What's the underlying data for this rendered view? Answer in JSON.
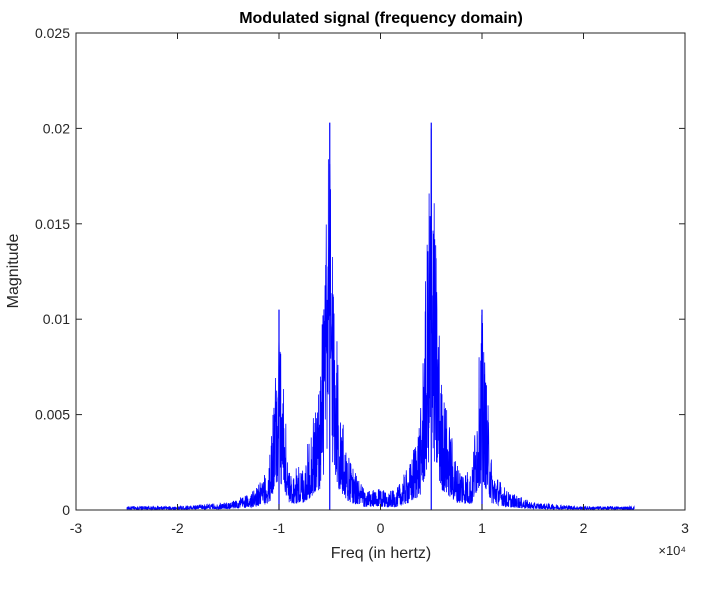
{
  "chart_data": {
    "type": "line",
    "title": "Modulated signal (frequency domain)",
    "xlabel": "Freq (in hertz)",
    "ylabel": "Magnitude",
    "x_exponent_label": "×10⁴",
    "xlim": [
      -3,
      3
    ],
    "ylim": [
      0,
      0.025
    ],
    "x_ticks": [
      "-3",
      "-2",
      "-1",
      "0",
      "1",
      "2",
      "3"
    ],
    "y_ticks": [
      "0",
      "0.005",
      "0.01",
      "0.015",
      "0.02",
      "0.025"
    ],
    "x_tick_values": [
      -3,
      -2,
      -1,
      0,
      1,
      2,
      3
    ],
    "y_tick_values": [
      0,
      0.005,
      0.01,
      0.015,
      0.02,
      0.025
    ],
    "grid": false,
    "line_color": "#0000FF",
    "series": [
      {
        "x_range": [
          -2.5,
          2.5
        ],
        "peaks": [
          {
            "x": -1.0,
            "y": 0.0105
          },
          {
            "x": -0.5,
            "y": 0.0203
          },
          {
            "x": 0.5,
            "y": 0.0203
          },
          {
            "x": 1.0,
            "y": 0.0105
          }
        ],
        "envelope": [
          {
            "x": -2.5,
            "y": 0.0002
          },
          {
            "x": -2.0,
            "y": 0.0002
          },
          {
            "x": -1.5,
            "y": 0.0004
          },
          {
            "x": -1.25,
            "y": 0.001
          },
          {
            "x": -1.1,
            "y": 0.0022
          },
          {
            "x": -1.0,
            "y": 0.0105
          },
          {
            "x": -0.9,
            "y": 0.002
          },
          {
            "x": -0.75,
            "y": 0.0025
          },
          {
            "x": -0.6,
            "y": 0.007
          },
          {
            "x": -0.5,
            "y": 0.0203
          },
          {
            "x": -0.4,
            "y": 0.0055
          },
          {
            "x": -0.3,
            "y": 0.0026
          },
          {
            "x": -0.15,
            "y": 0.001
          },
          {
            "x": 0.0,
            "y": 0.0011
          },
          {
            "x": 0.15,
            "y": 0.001
          },
          {
            "x": 0.3,
            "y": 0.0026
          },
          {
            "x": 0.4,
            "y": 0.0055
          },
          {
            "x": 0.5,
            "y": 0.0203
          },
          {
            "x": 0.6,
            "y": 0.007
          },
          {
            "x": 0.75,
            "y": 0.0025
          },
          {
            "x": 0.9,
            "y": 0.002
          },
          {
            "x": 1.0,
            "y": 0.0105
          },
          {
            "x": 1.1,
            "y": 0.0022
          },
          {
            "x": 1.25,
            "y": 0.001
          },
          {
            "x": 1.5,
            "y": 0.0004
          },
          {
            "x": 2.0,
            "y": 0.0002
          },
          {
            "x": 2.5,
            "y": 0.0002
          }
        ]
      }
    ]
  }
}
